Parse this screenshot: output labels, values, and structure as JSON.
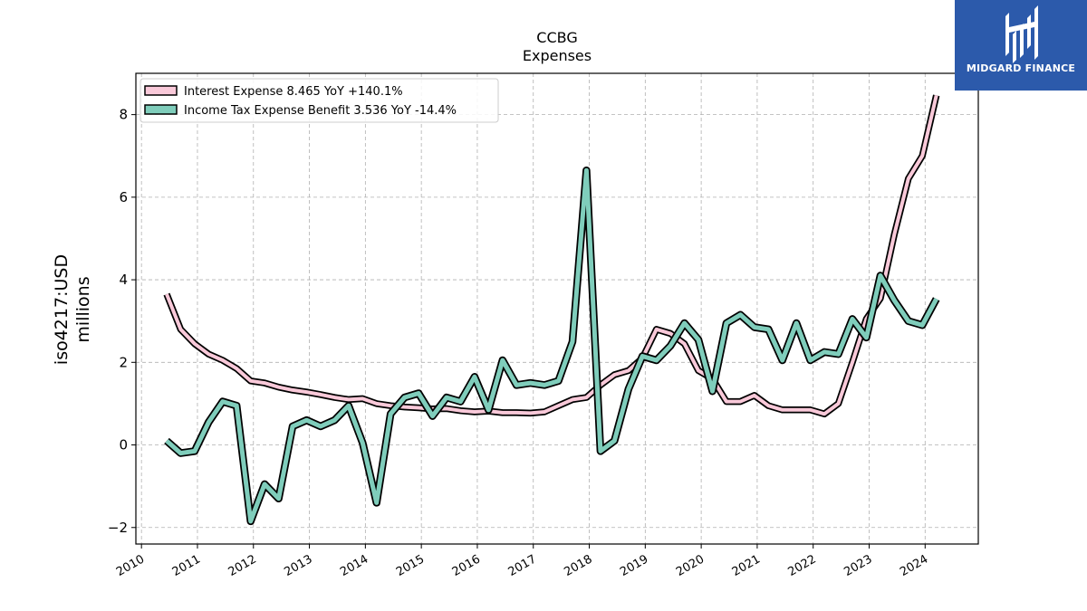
{
  "brand": {
    "name": "MIDGARD FINANCE",
    "color": "#2c5aab"
  },
  "chart_data": {
    "type": "line",
    "title": "CCBG",
    "subtitle": "Expenses",
    "ylabel_line1": "iso4217:USD",
    "ylabel_line2": "millions",
    "xlabel": "",
    "xlim": [
      2009.9,
      2024.95
    ],
    "ylim": [
      -2.4,
      9.0
    ],
    "yticks": [
      -2,
      0,
      2,
      4,
      6,
      8
    ],
    "ytick_labels": [
      "−2",
      "0",
      "2",
      "4",
      "6",
      "8"
    ],
    "xticks": [
      2010,
      2011,
      2012,
      2013,
      2014,
      2015,
      2016,
      2017,
      2018,
      2019,
      2020,
      2021,
      2022,
      2023,
      2024
    ],
    "xtick_labels": [
      "2010",
      "2011",
      "2012",
      "2013",
      "2014",
      "2015",
      "2016",
      "2017",
      "2018",
      "2019",
      "2020",
      "2021",
      "2022",
      "2023",
      "2024"
    ],
    "grid": true,
    "legend_position": "top-left",
    "x": [
      2010.45,
      2010.7,
      2010.95,
      2011.2,
      2011.45,
      2011.7,
      2011.95,
      2012.2,
      2012.45,
      2012.7,
      2012.95,
      2013.2,
      2013.45,
      2013.7,
      2013.95,
      2014.2,
      2014.45,
      2014.7,
      2014.95,
      2015.2,
      2015.45,
      2015.7,
      2015.95,
      2016.2,
      2016.45,
      2016.7,
      2016.95,
      2017.2,
      2017.45,
      2017.7,
      2017.95,
      2018.2,
      2018.45,
      2018.7,
      2018.95,
      2019.2,
      2019.45,
      2019.7,
      2019.95,
      2020.2,
      2020.45,
      2020.7,
      2020.95,
      2021.2,
      2021.45,
      2021.7,
      2021.95,
      2022.2,
      2022.45,
      2022.7,
      2022.95,
      2023.2,
      2023.45,
      2023.7,
      2023.95,
      2024.2
    ],
    "series": [
      {
        "name": "Interest Expense  8.465 YoY +140.1%",
        "color": "#f9c9d9",
        "values": [
          3.65,
          2.8,
          2.45,
          2.2,
          2.05,
          1.85,
          1.55,
          1.5,
          1.4,
          1.33,
          1.28,
          1.22,
          1.15,
          1.1,
          1.12,
          1.0,
          0.95,
          0.92,
          0.9,
          0.87,
          0.88,
          0.83,
          0.8,
          0.82,
          0.78,
          0.78,
          0.77,
          0.8,
          0.95,
          1.1,
          1.15,
          1.45,
          1.7,
          1.8,
          2.1,
          2.8,
          2.7,
          2.45,
          1.8,
          1.6,
          1.05,
          1.05,
          1.2,
          0.95,
          0.85,
          0.85,
          0.85,
          0.75,
          1.0,
          2.0,
          3.05,
          3.55,
          5.1,
          6.45,
          7.0,
          8.465
        ]
      },
      {
        "name": "Income Tax Expense Benefit  3.536 YoY -14.4%",
        "color": "#7fcdbb",
        "values": [
          0.1,
          -0.2,
          -0.15,
          0.55,
          1.05,
          0.95,
          -1.85,
          -0.95,
          -1.3,
          0.45,
          0.6,
          0.45,
          0.6,
          0.95,
          0.05,
          -1.4,
          0.75,
          1.15,
          1.25,
          0.7,
          1.15,
          1.05,
          1.65,
          0.85,
          2.05,
          1.45,
          1.5,
          1.45,
          1.55,
          2.5,
          6.65,
          -0.15,
          0.1,
          1.35,
          2.15,
          2.05,
          2.4,
          2.95,
          2.55,
          1.3,
          2.95,
          3.15,
          2.85,
          2.8,
          2.05,
          2.95,
          2.05,
          2.25,
          2.2,
          3.05,
          2.6,
          4.1,
          3.5,
          3.0,
          2.9,
          3.536
        ]
      }
    ]
  }
}
